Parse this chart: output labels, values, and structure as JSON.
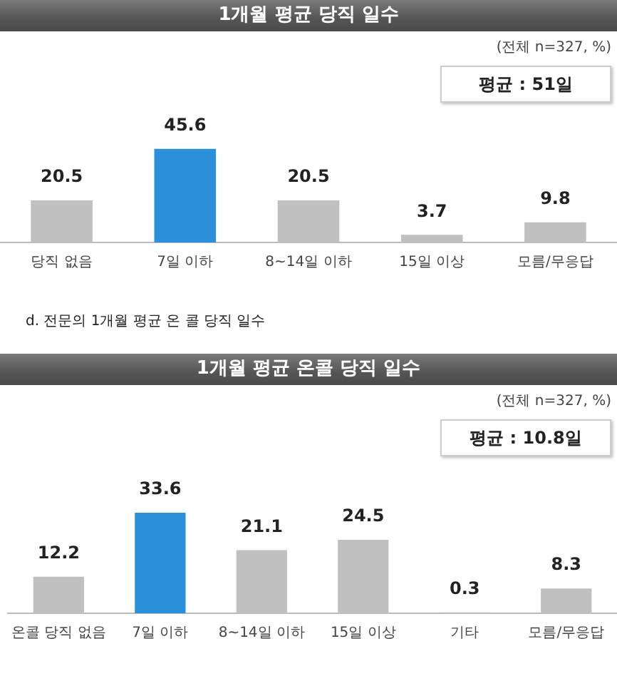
{
  "chart_data": [
    {
      "type": "bar",
      "title": "1개월 평균 당직 일수",
      "categories": [
        "당직 없음",
        "7일 이하",
        "8~14일 이하",
        "15일 이상",
        "모름/무응답"
      ],
      "values": [
        20.5,
        45.6,
        20.5,
        3.7,
        9.8
      ],
      "colors": [
        "#c0c0c0",
        "#2b8fd9",
        "#c0c0c0",
        "#c0c0c0",
        "#c0c0c0"
      ],
      "data_labels": true,
      "grid": false,
      "legend": false,
      "annotations": [
        "(전체 n=327, %)",
        "평균 : 51일",
        "d.   전문의 1개월 평균 온 콜 당직 일수"
      ]
    },
    {
      "type": "bar",
      "title": "1개월 평균 온콜 당직 일수",
      "categories": [
        "온콜 당직 없음",
        "7일 이하",
        "8~14일 이하",
        "15일 이상",
        "기타",
        "모름/무응답"
      ],
      "values": [
        12.2,
        33.6,
        21.1,
        24.5,
        0.3,
        8.3
      ],
      "colors": [
        "#c0c0c0",
        "#2b8fd9",
        "#c0c0c0",
        "#c0c0c0",
        "#c0c0c0",
        "#c0c0c0"
      ],
      "data_labels": true,
      "grid": false,
      "legend": false,
      "annotations": [
        "(전체 n=327, %)",
        "평균 : 10.8일"
      ]
    }
  ]
}
